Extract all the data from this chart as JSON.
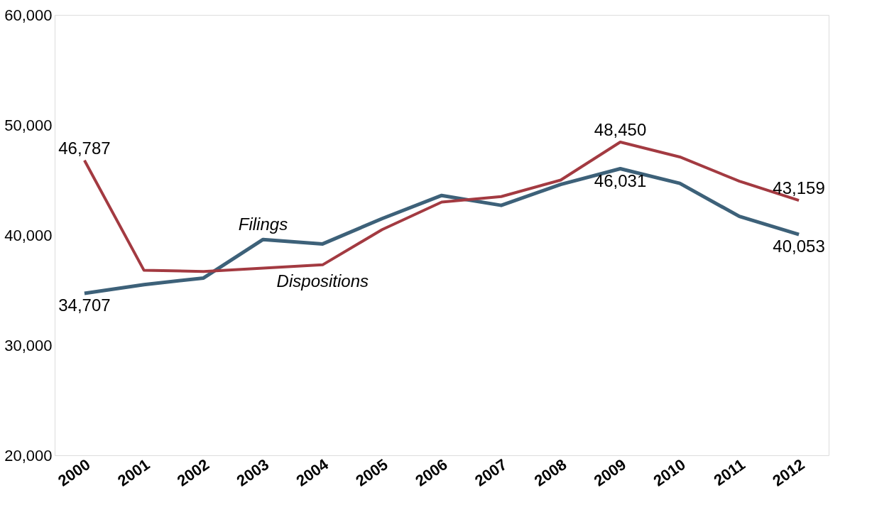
{
  "chart_data": {
    "type": "line",
    "categories": [
      "2000",
      "2001",
      "2002",
      "2003",
      "2004",
      "2005",
      "2006",
      "2007",
      "2008",
      "2009",
      "2010",
      "2011",
      "2012"
    ],
    "series": [
      {
        "name": "Filings",
        "color": "#3d6179",
        "values": [
          34707,
          35500,
          36100,
          39600,
          39200,
          41500,
          43600,
          42700,
          44600,
          46031,
          44700,
          41700,
          40053
        ],
        "value_labels": [
          "34,707",
          null,
          null,
          null,
          null,
          null,
          null,
          null,
          null,
          "46,031",
          null,
          null,
          "40,053"
        ]
      },
      {
        "name": "Dispositions",
        "color": "#a33a41",
        "values": [
          46787,
          36800,
          36700,
          37000,
          37300,
          40500,
          43000,
          43500,
          45000,
          48450,
          47100,
          44900,
          43159
        ],
        "value_labels": [
          "46,787",
          null,
          null,
          null,
          null,
          null,
          null,
          null,
          null,
          "48,450",
          null,
          null,
          "43,159"
        ]
      }
    ],
    "ylim": [
      20000,
      60000
    ],
    "yticks": [
      {
        "value": 20000,
        "label": "20,000"
      },
      {
        "value": 30000,
        "label": "30,000"
      },
      {
        "value": 40000,
        "label": "40,000"
      },
      {
        "value": 50000,
        "label": "50,000"
      },
      {
        "value": 60000,
        "label": "60,000"
      }
    ],
    "grid": false,
    "marker": "none",
    "line_style": "solid"
  }
}
